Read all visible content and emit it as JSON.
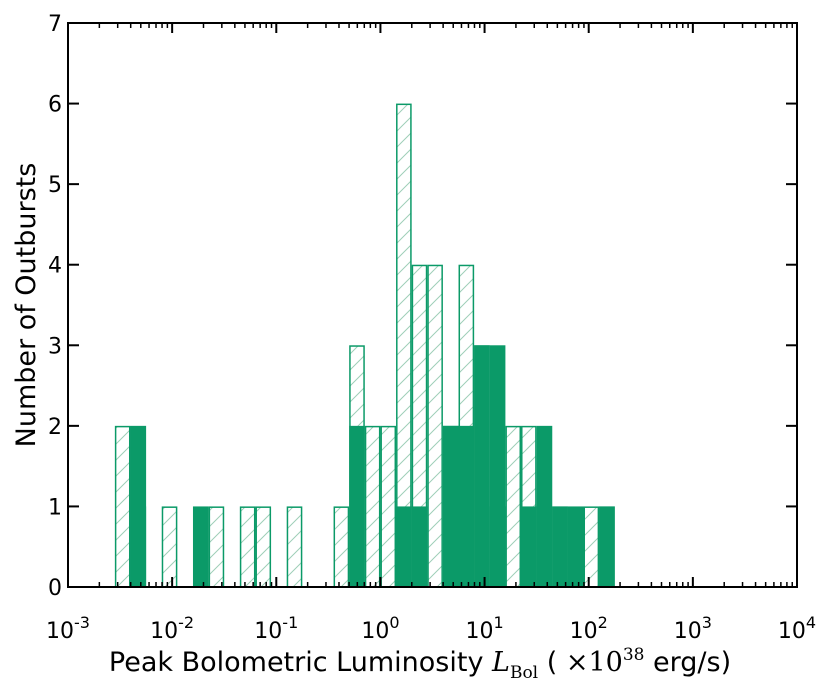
{
  "chart_data": {
    "type": "bar",
    "xscale": "log",
    "xlim": [
      0.001,
      10000
    ],
    "ylim": [
      0,
      7
    ],
    "grid": false,
    "xlabel": {
      "prefix": "Peak Bolometric Luminosity ",
      "symbol": "L",
      "subscript": "Bol",
      "unit_open": " ( ",
      "times": "×",
      "base": "10",
      "exponent": "38",
      "unit_close": " erg/s)"
    },
    "ylabel": "Number of Outbursts",
    "xtick_labels": [
      {
        "base": "10",
        "exp": "-3",
        "value": 0.001
      },
      {
        "base": "10",
        "exp": "-2",
        "value": 0.01
      },
      {
        "base": "10",
        "exp": "-1",
        "value": 0.1
      },
      {
        "base": "10",
        "exp": "0",
        "value": 1
      },
      {
        "base": "10",
        "exp": "1",
        "value": 10
      },
      {
        "base": "10",
        "exp": "2",
        "value": 100
      },
      {
        "base": "10",
        "exp": "3",
        "value": 1000
      },
      {
        "base": "10",
        "exp": "4",
        "value": 10000
      }
    ],
    "ytick_labels": [
      "0",
      "1",
      "2",
      "3",
      "4",
      "5",
      "6",
      "7"
    ],
    "bin_edges_log10": [
      -2.55,
      -2.4,
      -2.25,
      -2.1,
      -1.95,
      -1.8,
      -1.65,
      -1.5,
      -1.35,
      -1.2,
      -1.05,
      -0.9,
      -0.75,
      -0.6,
      -0.45,
      -0.3,
      -0.15,
      0.0,
      0.15,
      0.3,
      0.45,
      0.6,
      0.75,
      0.9,
      1.05,
      1.2,
      1.35,
      1.5,
      1.65,
      1.8,
      1.95,
      2.1,
      2.25
    ],
    "series": [
      {
        "style": "hatched-outline",
        "color": "#0b9a68",
        "counts": [
          2,
          1,
          0,
          1,
          0,
          0,
          1,
          0,
          1,
          1,
          0,
          1,
          0,
          0,
          1,
          3,
          2,
          2,
          6,
          4,
          4,
          2,
          4,
          3,
          1,
          2,
          2,
          1,
          1,
          0,
          1,
          1
        ]
      },
      {
        "style": "filled",
        "color": "#0b9a68",
        "counts": [
          0,
          2,
          0,
          0,
          0,
          1,
          0,
          0,
          0,
          0,
          0,
          0,
          0,
          0,
          0,
          2,
          0,
          0,
          1,
          1,
          0,
          2,
          2,
          3,
          3,
          0,
          1,
          2,
          1,
          1,
          0,
          1
        ]
      }
    ]
  }
}
